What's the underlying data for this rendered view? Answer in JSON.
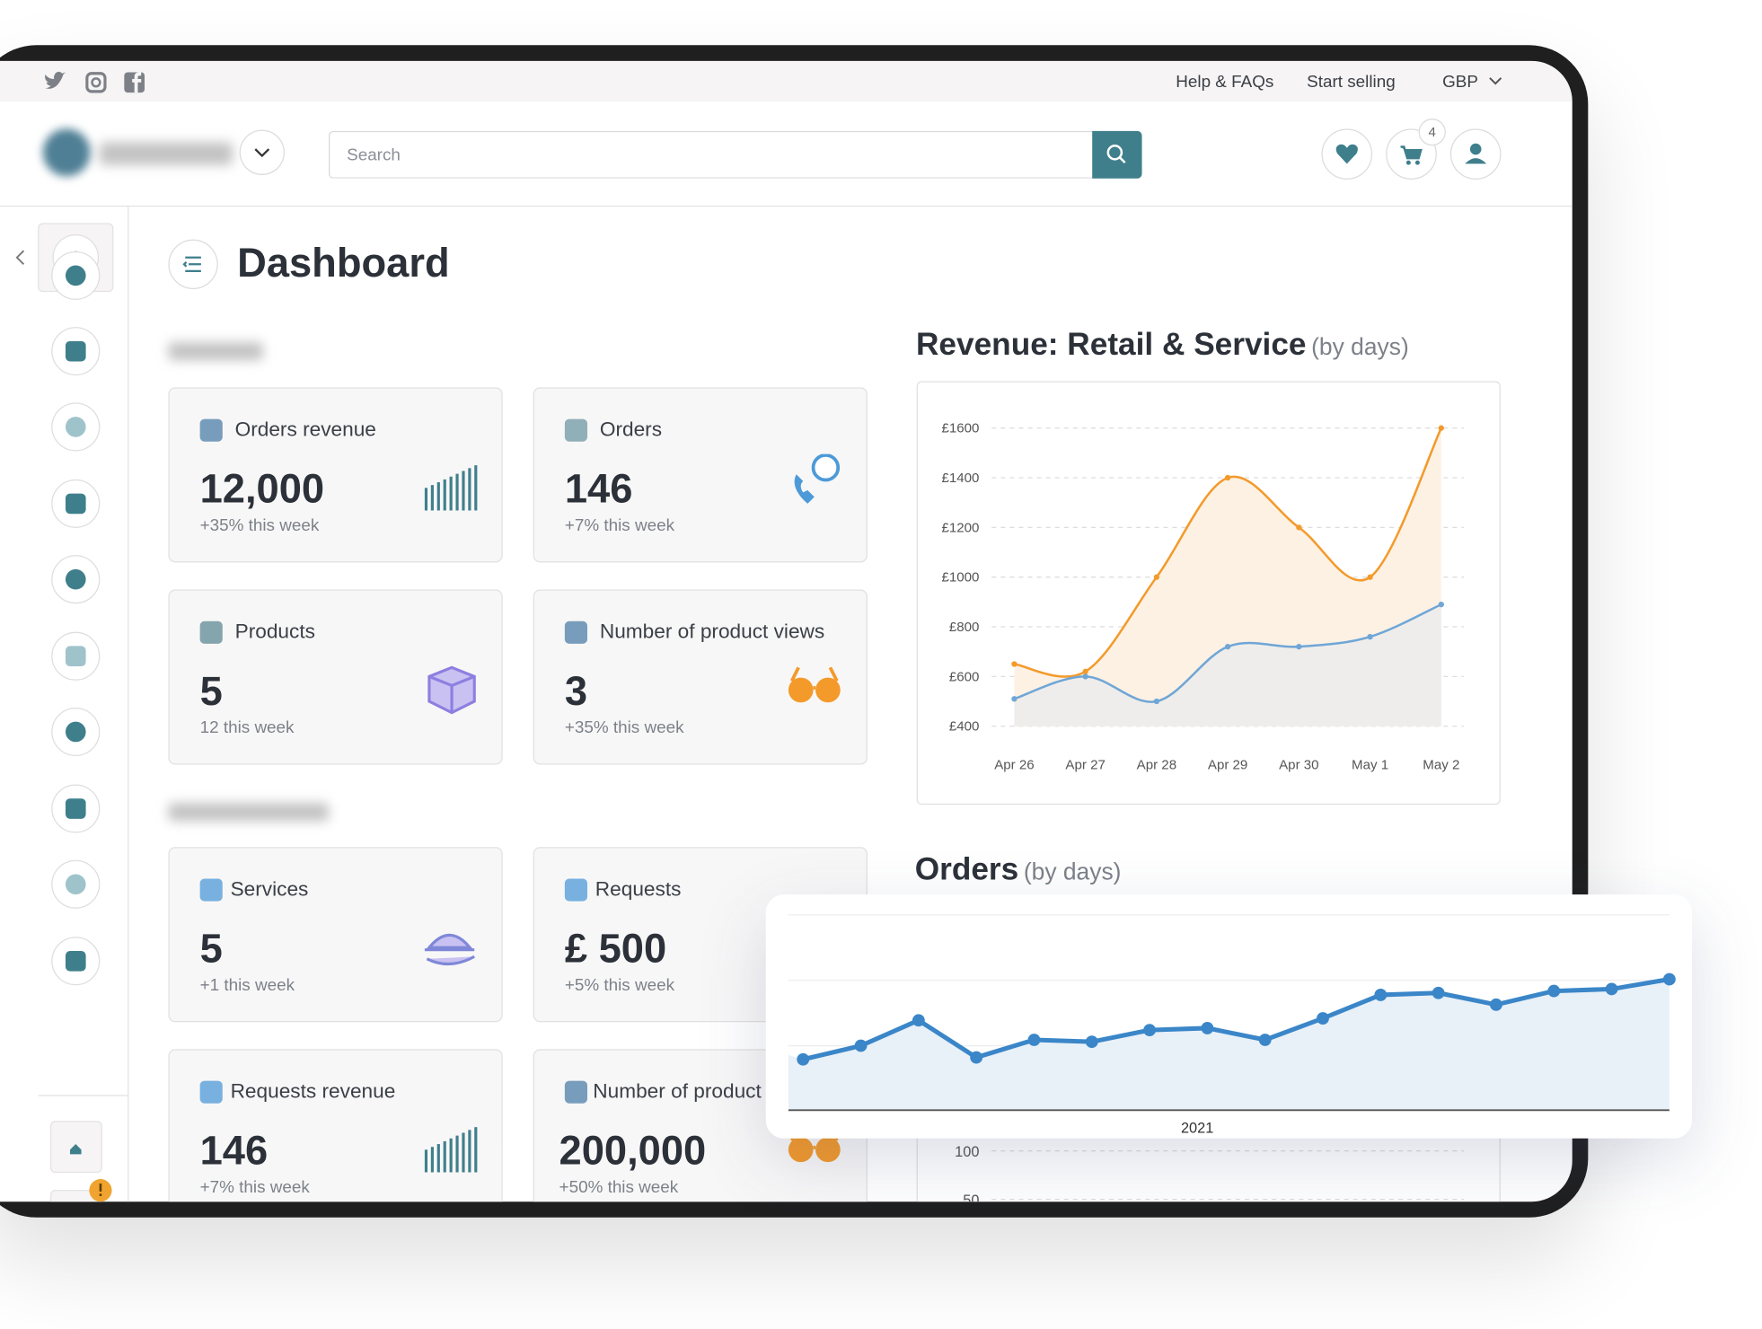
{
  "topbar": {
    "links": [
      "Help & FAQs",
      "Start selling",
      "GBP"
    ]
  },
  "header": {
    "search_placeholder": "Search",
    "cart_badge": "4"
  },
  "page_title": "Dashboard",
  "cards": [
    {
      "label": "Orders revenue",
      "value": "12,000",
      "change": "+35% this week"
    },
    {
      "label": "Orders",
      "value": "146",
      "change": "+7% this week"
    },
    {
      "label": "Products",
      "value": "5",
      "change": "12 this week"
    },
    {
      "label": "Number of product views",
      "value": "3",
      "change": "+35% this week"
    },
    {
      "label": "Services",
      "value": "5",
      "change": "+1 this week"
    },
    {
      "label": "Requests",
      "value": "£ 500",
      "change": "+5% this week"
    },
    {
      "label": "Requests revenue",
      "value": "146",
      "change": "+7% this week"
    },
    {
      "label": "Number of product views",
      "value": "200,000",
      "change": "+50% this week"
    }
  ],
  "chart_data": [
    {
      "type": "line",
      "title": "Revenue: Retail & Service",
      "subtitle": "(by days)",
      "categories": [
        "Apr 26",
        "Apr 27",
        "Apr 28",
        "Apr 29",
        "Apr 30",
        "May 1",
        "May 2"
      ],
      "series": [
        {
          "color": "#f39a2b",
          "values": [
            650,
            620,
            1000,
            1400,
            1200,
            1000,
            1600
          ]
        },
        {
          "color": "#6fa6d6",
          "values": [
            510,
            600,
            500,
            720,
            720,
            760,
            890
          ]
        }
      ],
      "ylim": [
        400,
        1600
      ],
      "yticks": [
        {
          "value": 400,
          "label": "£400"
        },
        {
          "value": 600,
          "label": "£600"
        },
        {
          "value": 800,
          "label": "£800"
        },
        {
          "value": 1000,
          "label": "£1000"
        },
        {
          "value": 1200,
          "label": "£1200"
        },
        {
          "value": 1400,
          "label": "£1400"
        },
        {
          "value": 1600,
          "label": "£1600"
        }
      ],
      "grid": true
    },
    {
      "type": "line",
      "title": "Orders",
      "subtitle": "(by days)",
      "ylim": [
        50,
        100
      ],
      "yticks": [
        50,
        100
      ],
      "grid": true
    },
    {
      "type": "area",
      "xlabel": "2021",
      "color": "#3a86c8",
      "values": [
        26,
        33,
        46,
        27,
        36,
        35,
        41,
        42,
        36,
        47,
        59,
        60,
        54,
        61,
        62,
        67
      ],
      "ylim": [
        0,
        100
      ]
    }
  ]
}
